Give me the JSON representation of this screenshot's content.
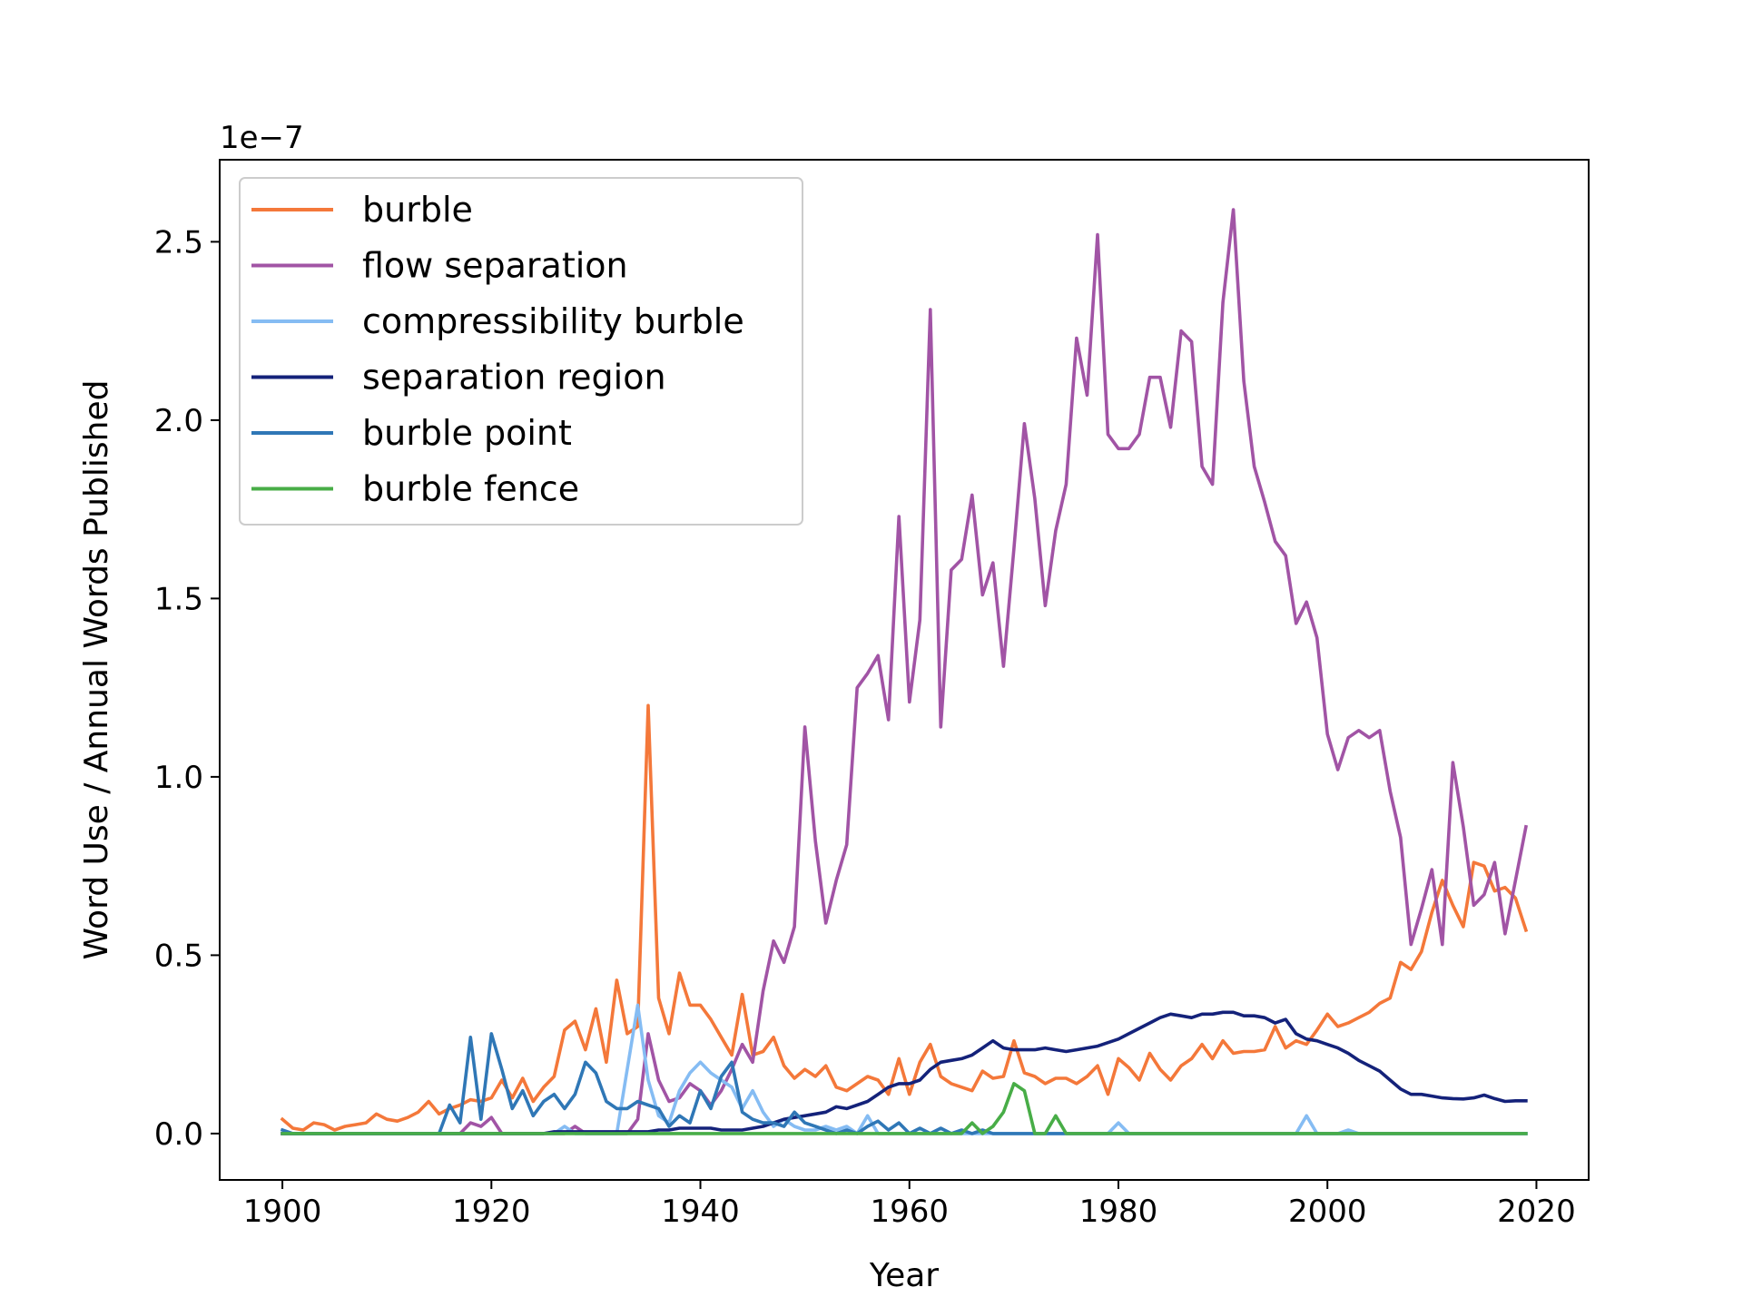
{
  "chart_data": {
    "type": "line",
    "xlabel": "Year",
    "ylabel": "Word Use / Annual Words Published",
    "y_offset_label": "1e−7",
    "xlim": [
      1894,
      2025
    ],
    "ylim": [
      -0.13,
      2.73
    ],
    "x_ticks": [
      1900,
      1920,
      1940,
      1960,
      1980,
      2000,
      2020
    ],
    "y_ticks": [
      0.0,
      0.5,
      1.0,
      1.5,
      2.0,
      2.5
    ],
    "y_tick_labels": [
      "0.0",
      "0.5",
      "1.0",
      "1.5",
      "2.0",
      "2.5"
    ],
    "grid": false,
    "legend_position": "upper-left",
    "x": [
      1900,
      1901,
      1902,
      1903,
      1904,
      1905,
      1906,
      1907,
      1908,
      1909,
      1910,
      1911,
      1912,
      1913,
      1914,
      1915,
      1916,
      1917,
      1918,
      1919,
      1920,
      1921,
      1922,
      1923,
      1924,
      1925,
      1926,
      1927,
      1928,
      1929,
      1930,
      1931,
      1932,
      1933,
      1934,
      1935,
      1936,
      1937,
      1938,
      1939,
      1940,
      1941,
      1942,
      1943,
      1944,
      1945,
      1946,
      1947,
      1948,
      1949,
      1950,
      1951,
      1952,
      1953,
      1954,
      1955,
      1956,
      1957,
      1958,
      1959,
      1960,
      1961,
      1962,
      1963,
      1964,
      1965,
      1966,
      1967,
      1968,
      1969,
      1970,
      1971,
      1972,
      1973,
      1974,
      1975,
      1976,
      1977,
      1978,
      1979,
      1980,
      1981,
      1982,
      1983,
      1984,
      1985,
      1986,
      1987,
      1988,
      1989,
      1990,
      1991,
      1992,
      1993,
      1994,
      1995,
      1996,
      1997,
      1998,
      1999,
      2000,
      2001,
      2002,
      2003,
      2004,
      2005,
      2006,
      2007,
      2008,
      2009,
      2010,
      2011,
      2012,
      2013,
      2014,
      2015,
      2016,
      2017,
      2018,
      2019
    ],
    "series": [
      {
        "name": "burble",
        "color": "#f4783a",
        "values": [
          0.04,
          0.015,
          0.01,
          0.03,
          0.025,
          0.01,
          0.02,
          0.025,
          0.03,
          0.055,
          0.04,
          0.035,
          0.045,
          0.06,
          0.09,
          0.055,
          0.07,
          0.08,
          0.095,
          0.09,
          0.1,
          0.15,
          0.1,
          0.155,
          0.09,
          0.13,
          0.16,
          0.29,
          0.315,
          0.235,
          0.35,
          0.2,
          0.43,
          0.28,
          0.3,
          1.2,
          0.38,
          0.28,
          0.45,
          0.36,
          0.36,
          0.32,
          0.27,
          0.22,
          0.39,
          0.22,
          0.23,
          0.27,
          0.19,
          0.155,
          0.18,
          0.16,
          0.19,
          0.13,
          0.12,
          0.14,
          0.16,
          0.15,
          0.11,
          0.21,
          0.11,
          0.2,
          0.25,
          0.16,
          0.14,
          0.13,
          0.12,
          0.175,
          0.155,
          0.16,
          0.26,
          0.17,
          0.16,
          0.14,
          0.155,
          0.155,
          0.14,
          0.16,
          0.19,
          0.11,
          0.21,
          0.185,
          0.15,
          0.225,
          0.18,
          0.15,
          0.19,
          0.21,
          0.25,
          0.21,
          0.26,
          0.225,
          0.23,
          0.23,
          0.235,
          0.3,
          0.24,
          0.26,
          0.25,
          0.29,
          0.335,
          0.3,
          0.31,
          0.325,
          0.34,
          0.365,
          0.38,
          0.48,
          0.46,
          0.51,
          0.62,
          0.71,
          0.64,
          0.58,
          0.76,
          0.75,
          0.68,
          0.69,
          0.66,
          0.57
        ]
      },
      {
        "name": "flow separation",
        "color": "#a154a5",
        "values": [
          0.0,
          0.0,
          0.0,
          0.0,
          0.0,
          0.0,
          0.0,
          0.0,
          0.0,
          0.0,
          0.0,
          0.0,
          0.0,
          0.0,
          0.0,
          0.0,
          0.0,
          0.0,
          0.03,
          0.02,
          0.045,
          0.0,
          0.0,
          0.0,
          0.0,
          0.0,
          0.0,
          0.0,
          0.02,
          0.0,
          0.0,
          0.0,
          0.0,
          0.0,
          0.04,
          0.28,
          0.15,
          0.09,
          0.1,
          0.14,
          0.12,
          0.08,
          0.12,
          0.18,
          0.25,
          0.2,
          0.4,
          0.54,
          0.48,
          0.58,
          1.14,
          0.82,
          0.59,
          0.71,
          0.81,
          1.25,
          1.29,
          1.34,
          1.16,
          1.73,
          1.21,
          1.44,
          2.31,
          1.14,
          1.58,
          1.61,
          1.79,
          1.51,
          1.6,
          1.31,
          1.64,
          1.99,
          1.78,
          1.48,
          1.69,
          1.82,
          2.23,
          2.07,
          2.52,
          1.96,
          1.92,
          1.92,
          1.96,
          2.12,
          2.12,
          1.98,
          2.25,
          2.22,
          1.87,
          1.82,
          2.33,
          2.59,
          2.11,
          1.87,
          1.77,
          1.66,
          1.62,
          1.43,
          1.49,
          1.39,
          1.12,
          1.02,
          1.11,
          1.13,
          1.11,
          1.13,
          0.96,
          0.83,
          0.53,
          0.63,
          0.74,
          0.53,
          1.04,
          0.86,
          0.64,
          0.67,
          0.76,
          0.56,
          0.71,
          0.86
        ]
      },
      {
        "name": "compressibility burble",
        "color": "#85bcf3",
        "values": [
          0.0,
          0.0,
          0.0,
          0.0,
          0.0,
          0.0,
          0.0,
          0.0,
          0.0,
          0.0,
          0.0,
          0.0,
          0.0,
          0.0,
          0.0,
          0.0,
          0.0,
          0.0,
          0.0,
          0.0,
          0.0,
          0.0,
          0.0,
          0.0,
          0.0,
          0.0,
          0.0,
          0.02,
          0.0,
          0.0,
          0.0,
          0.0,
          0.0,
          0.18,
          0.36,
          0.15,
          0.05,
          0.03,
          0.12,
          0.17,
          0.2,
          0.17,
          0.15,
          0.13,
          0.07,
          0.12,
          0.06,
          0.02,
          0.04,
          0.02,
          0.01,
          0.01,
          0.02,
          0.01,
          0.02,
          0.0,
          0.05,
          0.0,
          0.0,
          0.0,
          0.0,
          0.0,
          0.0,
          0.0,
          0.0,
          0.0,
          0.0,
          0.0,
          0.0,
          0.0,
          0.0,
          0.0,
          0.0,
          0.0,
          0.0,
          0.0,
          0.0,
          0.0,
          0.0,
          0.0,
          0.03,
          0.0,
          0.0,
          0.0,
          0.0,
          0.0,
          0.0,
          0.0,
          0.0,
          0.0,
          0.0,
          0.0,
          0.0,
          0.0,
          0.0,
          0.0,
          0.0,
          0.0,
          0.05,
          0.0,
          0.0,
          0.0,
          0.01,
          0.0,
          0.0,
          0.0,
          0.0,
          0.0,
          0.0,
          0.0,
          0.0,
          0.0,
          0.0,
          0.0,
          0.0,
          0.0,
          0.0,
          0.0,
          0.0,
          0.0
        ]
      },
      {
        "name": "separation region",
        "color": "#14227a",
        "values": [
          0.0,
          0.0,
          0.0,
          0.0,
          0.0,
          0.0,
          0.0,
          0.0,
          0.0,
          0.0,
          0.0,
          0.0,
          0.0,
          0.0,
          0.0,
          0.0,
          0.0,
          0.0,
          0.0,
          0.0,
          0.0,
          0.0,
          0.0,
          0.0,
          0.0,
          0.0,
          0.005,
          0.005,
          0.005,
          0.005,
          0.005,
          0.005,
          0.005,
          0.005,
          0.005,
          0.005,
          0.01,
          0.01,
          0.015,
          0.015,
          0.015,
          0.015,
          0.01,
          0.01,
          0.01,
          0.015,
          0.02,
          0.03,
          0.04,
          0.045,
          0.05,
          0.055,
          0.06,
          0.075,
          0.07,
          0.08,
          0.09,
          0.11,
          0.13,
          0.14,
          0.14,
          0.15,
          0.18,
          0.2,
          0.205,
          0.21,
          0.22,
          0.24,
          0.26,
          0.24,
          0.235,
          0.235,
          0.235,
          0.24,
          0.235,
          0.23,
          0.235,
          0.24,
          0.245,
          0.255,
          0.265,
          0.28,
          0.295,
          0.31,
          0.325,
          0.335,
          0.33,
          0.325,
          0.335,
          0.335,
          0.34,
          0.34,
          0.33,
          0.33,
          0.325,
          0.31,
          0.32,
          0.28,
          0.265,
          0.26,
          0.25,
          0.24,
          0.225,
          0.205,
          0.19,
          0.175,
          0.15,
          0.125,
          0.11,
          0.11,
          0.105,
          0.1,
          0.098,
          0.097,
          0.1,
          0.108,
          0.098,
          0.09,
          0.092,
          0.092
        ]
      },
      {
        "name": "burble point",
        "color": "#2f77b6",
        "values": [
          0.01,
          0.0,
          0.0,
          0.0,
          0.0,
          0.0,
          0.0,
          0.0,
          0.0,
          0.0,
          0.0,
          0.0,
          0.0,
          0.0,
          0.0,
          0.0,
          0.08,
          0.03,
          0.27,
          0.04,
          0.28,
          0.18,
          0.07,
          0.12,
          0.05,
          0.09,
          0.11,
          0.07,
          0.11,
          0.2,
          0.17,
          0.09,
          0.07,
          0.07,
          0.09,
          0.08,
          0.07,
          0.02,
          0.05,
          0.03,
          0.12,
          0.07,
          0.16,
          0.2,
          0.06,
          0.04,
          0.03,
          0.03,
          0.02,
          0.06,
          0.03,
          0.02,
          0.01,
          0.0,
          0.01,
          0.0,
          0.02,
          0.035,
          0.01,
          0.03,
          0.0,
          0.015,
          0.0,
          0.015,
          0.0,
          0.01,
          0.0,
          0.01,
          0.0,
          0.0,
          0.0,
          0.0,
          0.0,
          0.0,
          0.0,
          0.0,
          0.0,
          0.0,
          0.0,
          0.0,
          0.0,
          0.0,
          0.0,
          0.0,
          0.0,
          0.0,
          0.0,
          0.0,
          0.0,
          0.0,
          0.0,
          0.0,
          0.0,
          0.0,
          0.0,
          0.0,
          0.0,
          0.0,
          0.0,
          0.0,
          0.0,
          0.0,
          0.0,
          0.0,
          0.0,
          0.0,
          0.0,
          0.0,
          0.0,
          0.0,
          0.0,
          0.0,
          0.0,
          0.0,
          0.0,
          0.0,
          0.0,
          0.0,
          0.0,
          0.0
        ]
      },
      {
        "name": "burble fence",
        "color": "#48ad47",
        "values": [
          0.0,
          0.0,
          0.0,
          0.0,
          0.0,
          0.0,
          0.0,
          0.0,
          0.0,
          0.0,
          0.0,
          0.0,
          0.0,
          0.0,
          0.0,
          0.0,
          0.0,
          0.0,
          0.0,
          0.0,
          0.0,
          0.0,
          0.0,
          0.0,
          0.0,
          0.0,
          0.0,
          0.0,
          0.0,
          0.0,
          0.0,
          0.0,
          0.0,
          0.0,
          0.0,
          0.0,
          0.0,
          0.0,
          0.0,
          0.0,
          0.0,
          0.0,
          0.0,
          0.0,
          0.0,
          0.0,
          0.0,
          0.0,
          0.0,
          0.0,
          0.0,
          0.0,
          0.0,
          0.0,
          0.0,
          0.0,
          0.0,
          0.0,
          0.0,
          0.0,
          0.0,
          0.0,
          0.0,
          0.0,
          0.0,
          0.0,
          0.03,
          0.0,
          0.02,
          0.06,
          0.14,
          0.12,
          0.0,
          0.0,
          0.05,
          0.0,
          0.0,
          0.0,
          0.0,
          0.0,
          0.0,
          0.0,
          0.0,
          0.0,
          0.0,
          0.0,
          0.0,
          0.0,
          0.0,
          0.0,
          0.0,
          0.0,
          0.0,
          0.0,
          0.0,
          0.0,
          0.0,
          0.0,
          0.0,
          0.0,
          0.0,
          0.0,
          0.0,
          0.0,
          0.0,
          0.0,
          0.0,
          0.0,
          0.0,
          0.0,
          0.0,
          0.0,
          0.0,
          0.0,
          0.0,
          0.0,
          0.0,
          0.0,
          0.0,
          0.0
        ]
      }
    ]
  }
}
